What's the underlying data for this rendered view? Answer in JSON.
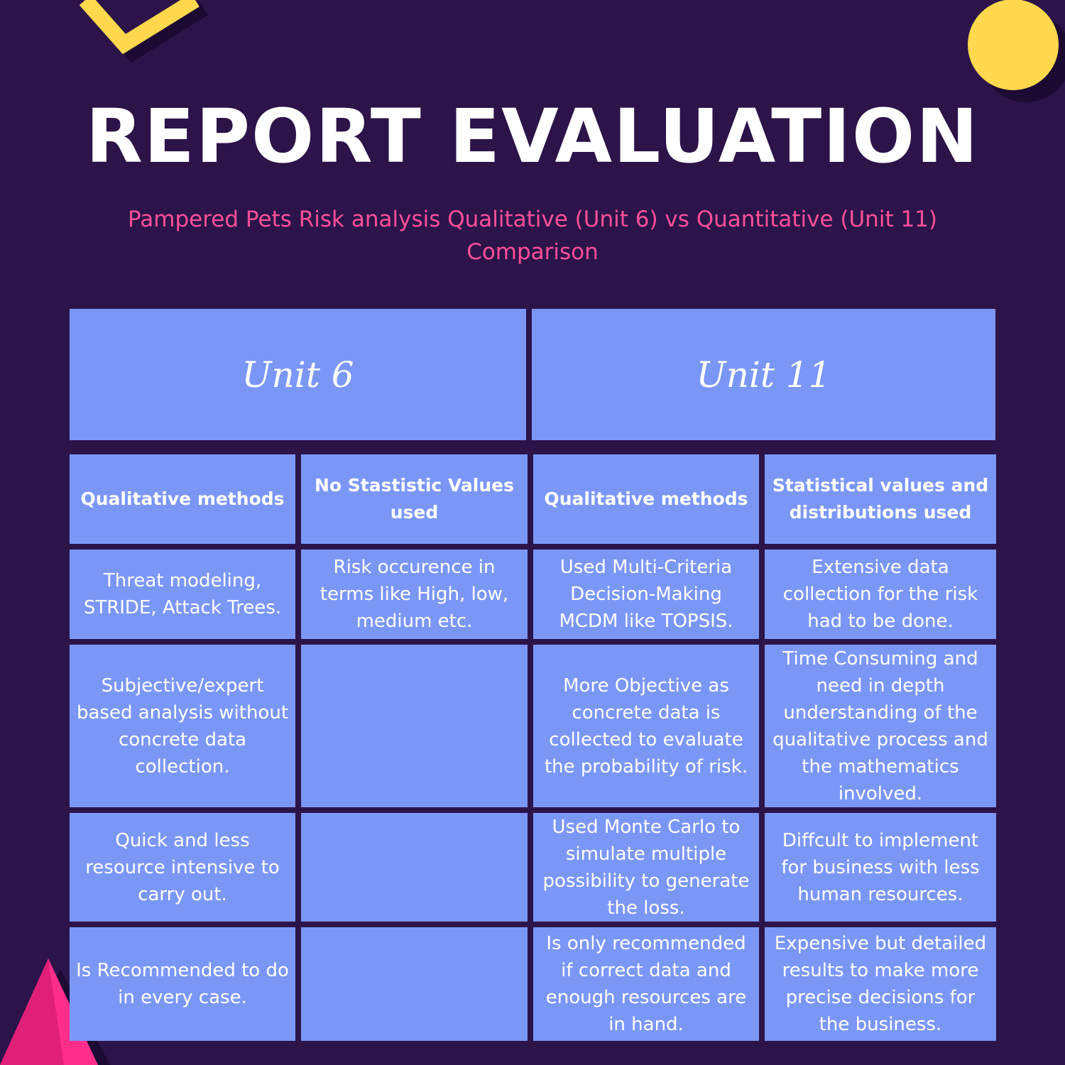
{
  "header": {
    "title": "REPORT EVALUATION",
    "subtitle": "Pampered Pets Risk analysis Qualitative (Unit 6) vs Quantitative (Unit 11) Comparison"
  },
  "table": {
    "units": [
      "Unit 6",
      "Unit 11"
    ],
    "columns": [
      "Qualitative methods",
      "No Stastistic Values used",
      "Qualitative methods",
      "Statistical values and distributions used"
    ],
    "rows": [
      [
        "Threat modeling, STRIDE, Attack Trees.",
        "Risk occurence in terms like High, low, medium etc.",
        "Used Multi-Criteria Decision-Making MCDM like TOPSIS.",
        "Extensive data collection for the risk had to be done."
      ],
      [
        "Subjective/expert based analysis without concrete data collection.",
        "",
        "More Objective as concrete data is collected to evaluate the probability of risk.",
        "Time Consuming and need in depth understanding of the qualitative process and the mathematics involved."
      ],
      [
        "Quick and less resource intensive to carry out.",
        "",
        "Used Monte Carlo to simulate multiple possibility to generate the loss.",
        "Diffcult to implement for business with less human resources."
      ],
      [
        "Is Recommended to do in every case.",
        "",
        "Is only recommended if correct data and enough resources are in hand.",
        "Expensive but detailed results to make more precise decisions for the business."
      ]
    ]
  },
  "colors": {
    "background": "#2c1449",
    "cell": "#7b97f6",
    "subtitle": "#ff4f9a",
    "circle": "#ffd84d",
    "triangle": "#ff2e8a"
  }
}
